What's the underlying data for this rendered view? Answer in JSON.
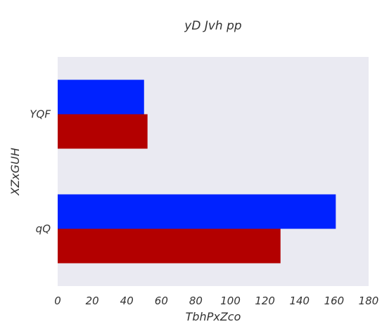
{
  "chart_data": {
    "type": "bar",
    "orientation": "horizontal",
    "title": "yD Jvh  pp",
    "xlabel": "TbhPxZco",
    "ylabel": "XZxGUH",
    "categories": [
      "YQF",
      "qQ"
    ],
    "series": [
      {
        "values": [
          50,
          161
        ],
        "color": "#0022ff"
      },
      {
        "values": [
          52,
          129
        ],
        "color": "#b30000"
      }
    ],
    "xlim": [
      0,
      180
    ],
    "xticks": [
      0,
      20,
      40,
      60,
      80,
      100,
      120,
      140,
      160,
      180
    ],
    "grid": false,
    "plot_background": "#eaeaf2",
    "legend": "none"
  }
}
